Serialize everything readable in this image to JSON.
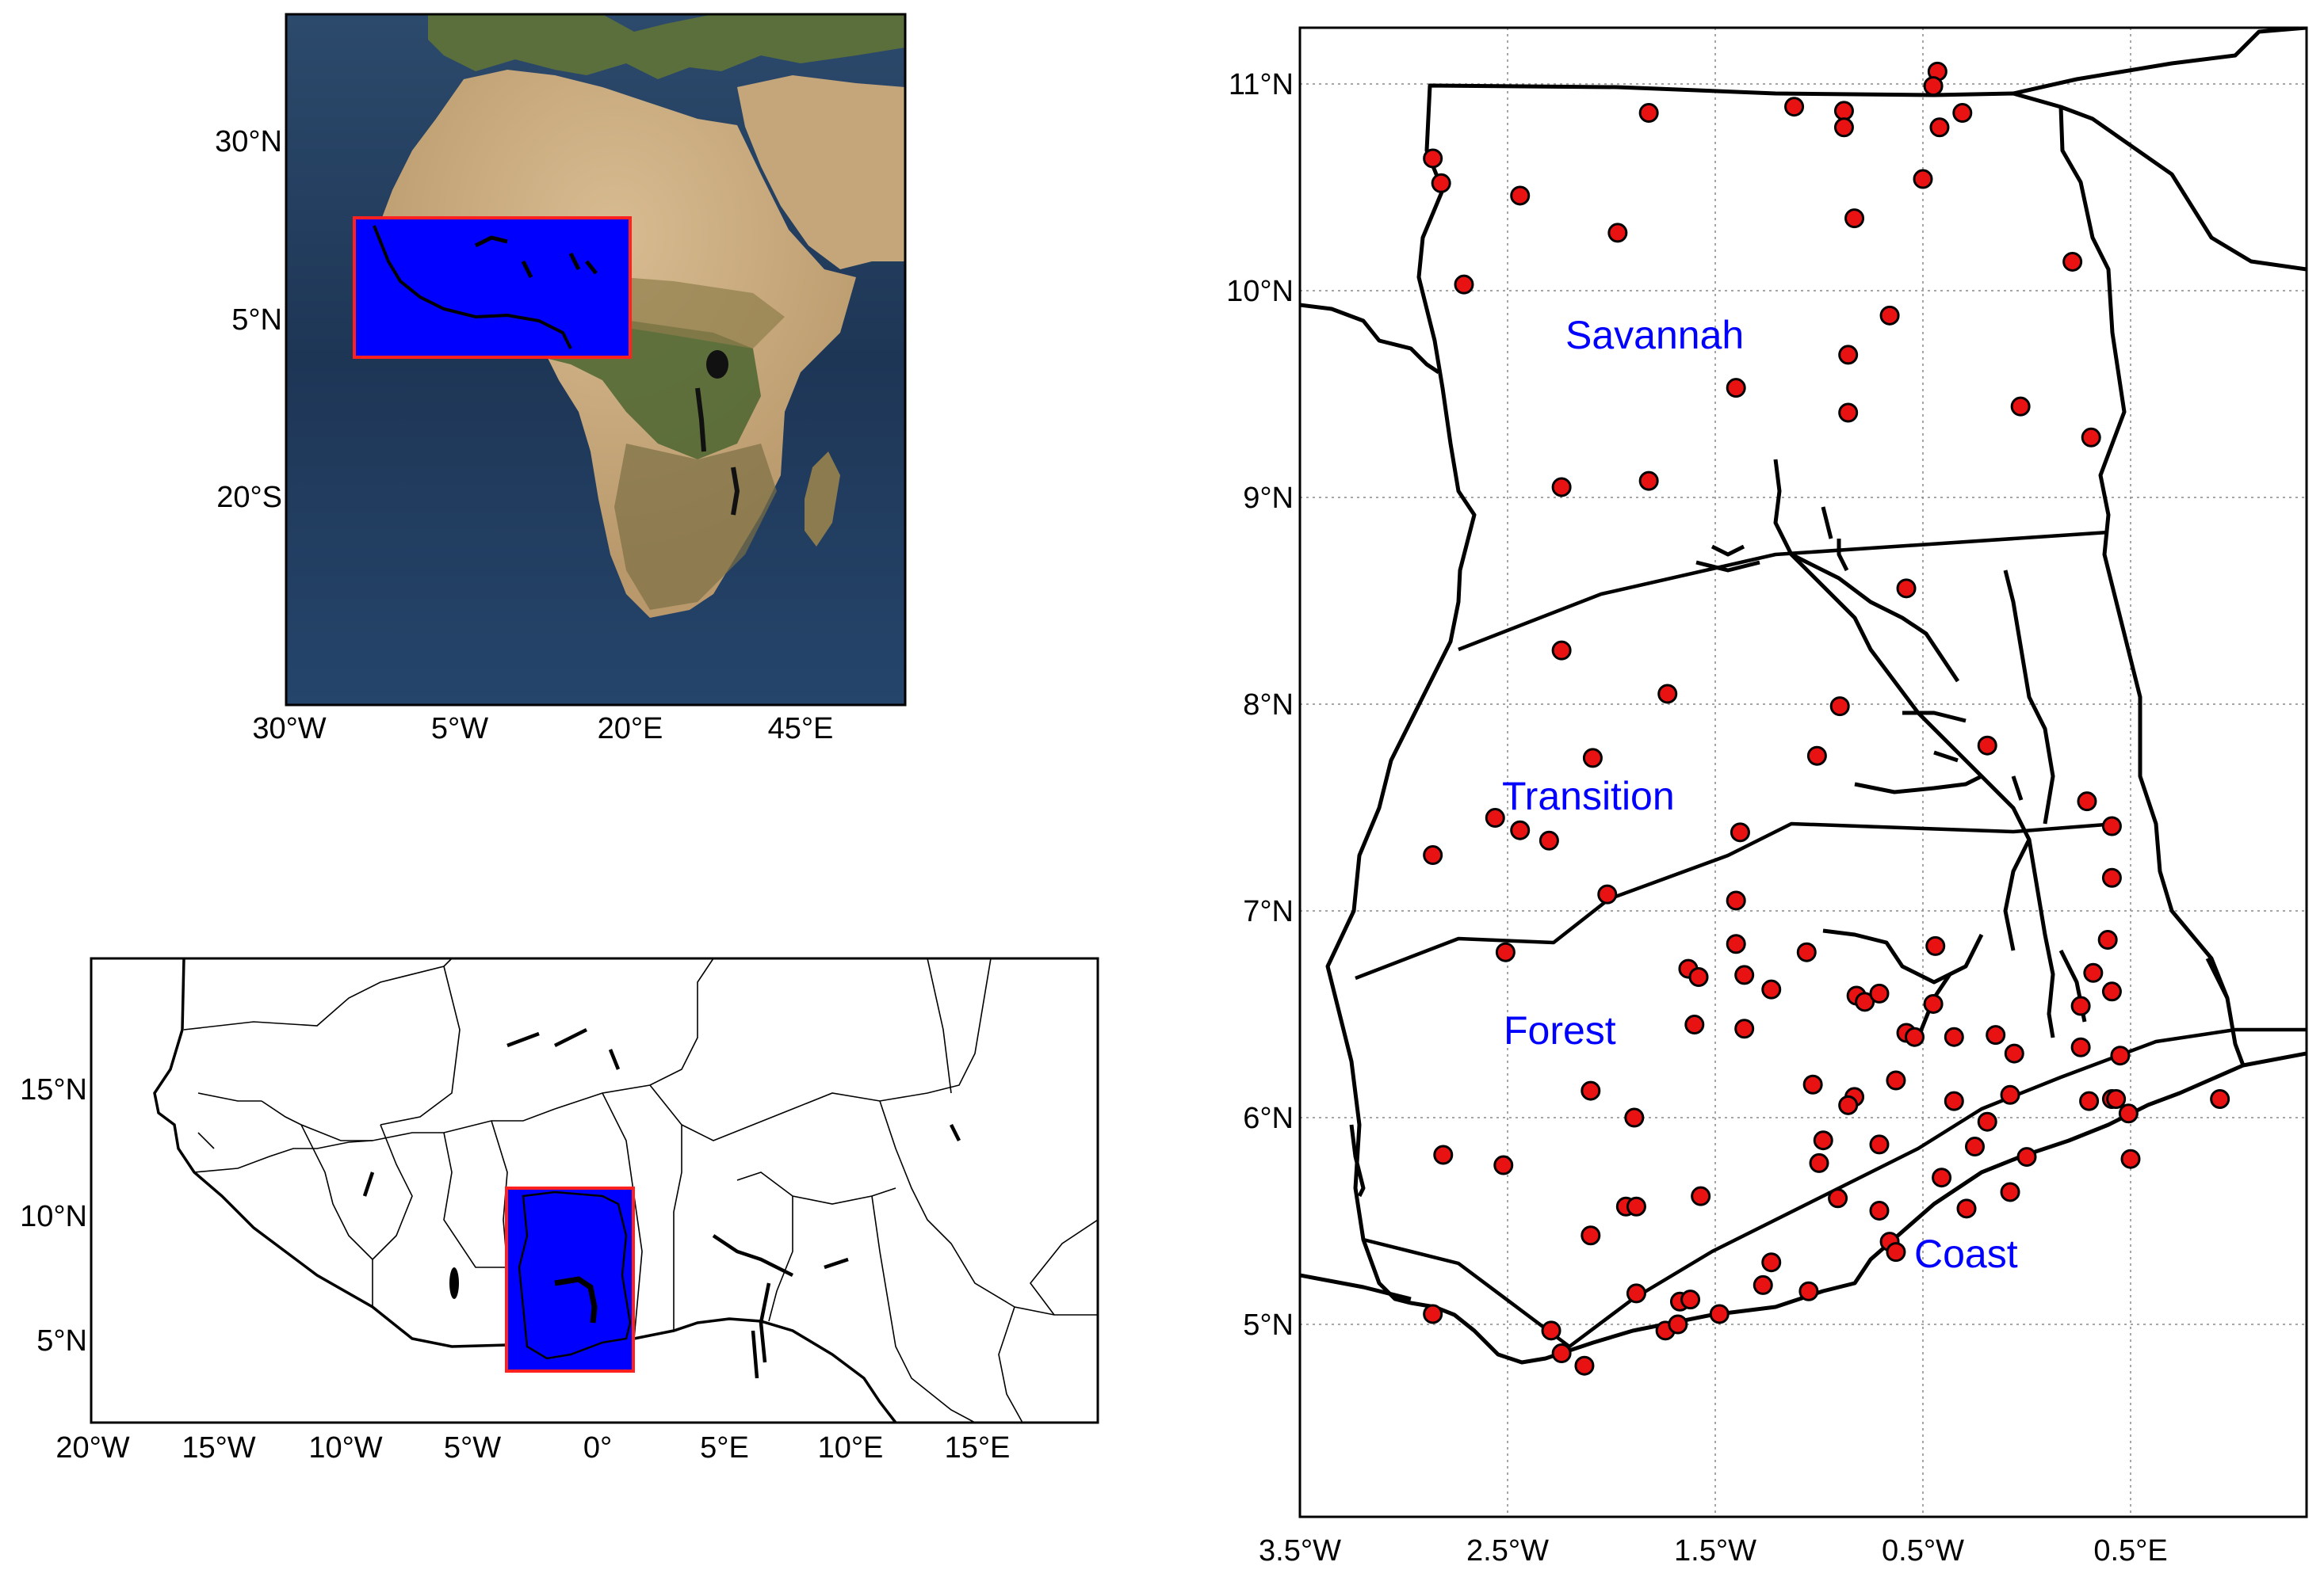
{
  "colors": {
    "ocean_dark": "#1b3050",
    "ocean_mid": "#2b4b6e",
    "desert": "#c7ab82",
    "savanna": "#93804f",
    "forest": "#3f5a2a",
    "highlight_fill": "#0000ff",
    "highlight_border": "#ff2020",
    "station": "#e81212",
    "region_label": "#0000ff"
  },
  "africa_map": {
    "x_ticks": [
      "30°W",
      "5°W",
      "20°E",
      "45°E"
    ],
    "y_ticks": [
      "30°N",
      "5°N",
      "20°S"
    ]
  },
  "west_africa_map": {
    "x_ticks": [
      "20°W",
      "15°W",
      "10°W",
      "5°W",
      "0°",
      "5°E",
      "10°E",
      "15°E"
    ],
    "y_ticks": [
      "15°N",
      "10°N",
      "5°N"
    ]
  },
  "ghana_map": {
    "x_ticks": [
      "3.5°W",
      "2.5°W",
      "1.5°W",
      "0.5°W",
      "0.5°E"
    ],
    "y_ticks": [
      "11°N",
      "10°N",
      "9°N",
      "8°N",
      "7°N",
      "6°N",
      "5°N"
    ],
    "region_labels": {
      "savannah": "Savannah",
      "transition": "Transition",
      "forest": "Forest",
      "coast": "Coast"
    },
    "stations": [
      {
        "lon": -2.86,
        "lat": 10.64
      },
      {
        "lon": -2.82,
        "lat": 10.52
      },
      {
        "lon": -2.44,
        "lat": 10.46
      },
      {
        "lon": -1.82,
        "lat": 10.86
      },
      {
        "lon": -1.12,
        "lat": 10.89
      },
      {
        "lon": -0.88,
        "lat": 10.87
      },
      {
        "lon": -0.88,
        "lat": 10.79
      },
      {
        "lon": -0.43,
        "lat": 11.06
      },
      {
        "lon": -0.45,
        "lat": 10.99
      },
      {
        "lon": -0.31,
        "lat": 10.86
      },
      {
        "lon": -0.42,
        "lat": 10.79
      },
      {
        "lon": -0.5,
        "lat": 10.54
      },
      {
        "lon": -0.83,
        "lat": 10.35
      },
      {
        "lon": -1.97,
        "lat": 10.28
      },
      {
        "lon": -2.71,
        "lat": 10.03
      },
      {
        "lon": 0.22,
        "lat": 10.14
      },
      {
        "lon": -0.66,
        "lat": 9.88
      },
      {
        "lon": -0.86,
        "lat": 9.69
      },
      {
        "lon": -1.4,
        "lat": 9.53
      },
      {
        "lon": -0.86,
        "lat": 9.41
      },
      {
        "lon": -0.03,
        "lat": 9.44
      },
      {
        "lon": 0.31,
        "lat": 9.29
      },
      {
        "lon": -2.24,
        "lat": 9.05
      },
      {
        "lon": -1.82,
        "lat": 9.08
      },
      {
        "lon": -0.58,
        "lat": 8.56
      },
      {
        "lon": -2.24,
        "lat": 8.26
      },
      {
        "lon": -1.73,
        "lat": 8.05
      },
      {
        "lon": -0.9,
        "lat": 7.99
      },
      {
        "lon": -2.09,
        "lat": 7.74
      },
      {
        "lon": -1.01,
        "lat": 7.75
      },
      {
        "lon": -0.19,
        "lat": 7.8
      },
      {
        "lon": 0.29,
        "lat": 7.53
      },
      {
        "lon": -2.56,
        "lat": 7.45
      },
      {
        "lon": -2.44,
        "lat": 7.39
      },
      {
        "lon": -2.3,
        "lat": 7.34
      },
      {
        "lon": -2.86,
        "lat": 7.27
      },
      {
        "lon": -1.38,
        "lat": 7.38
      },
      {
        "lon": 0.41,
        "lat": 7.41
      },
      {
        "lon": -2.02,
        "lat": 7.08
      },
      {
        "lon": -1.4,
        "lat": 7.05
      },
      {
        "lon": 0.41,
        "lat": 7.16
      },
      {
        "lon": -2.51,
        "lat": 6.8
      },
      {
        "lon": -1.4,
        "lat": 6.84
      },
      {
        "lon": -1.06,
        "lat": 6.8
      },
      {
        "lon": -0.44,
        "lat": 6.83
      },
      {
        "lon": 0.39,
        "lat": 6.86
      },
      {
        "lon": -1.63,
        "lat": 6.72
      },
      {
        "lon": -1.58,
        "lat": 6.68
      },
      {
        "lon": -1.36,
        "lat": 6.69
      },
      {
        "lon": -1.23,
        "lat": 6.62
      },
      {
        "lon": 0.32,
        "lat": 6.7
      },
      {
        "lon": -0.82,
        "lat": 6.59
      },
      {
        "lon": -0.78,
        "lat": 6.56
      },
      {
        "lon": -0.71,
        "lat": 6.6
      },
      {
        "lon": -0.45,
        "lat": 6.55
      },
      {
        "lon": 0.41,
        "lat": 6.61
      },
      {
        "lon": 0.26,
        "lat": 6.54
      },
      {
        "lon": -1.6,
        "lat": 6.45
      },
      {
        "lon": -1.36,
        "lat": 6.43
      },
      {
        "lon": -0.58,
        "lat": 6.41
      },
      {
        "lon": -0.54,
        "lat": 6.39
      },
      {
        "lon": -0.35,
        "lat": 6.39
      },
      {
        "lon": -0.15,
        "lat": 6.4
      },
      {
        "lon": 0.26,
        "lat": 6.34
      },
      {
        "lon": -0.06,
        "lat": 6.31
      },
      {
        "lon": 0.45,
        "lat": 6.3
      },
      {
        "lon": -1.03,
        "lat": 6.16
      },
      {
        "lon": -0.63,
        "lat": 6.18
      },
      {
        "lon": -0.83,
        "lat": 6.1
      },
      {
        "lon": -0.86,
        "lat": 6.06
      },
      {
        "lon": -0.35,
        "lat": 6.08
      },
      {
        "lon": -0.08,
        "lat": 6.11
      },
      {
        "lon": 0.41,
        "lat": 6.09
      },
      {
        "lon": 0.43,
        "lat": 6.09
      },
      {
        "lon": 0.49,
        "lat": 6.02
      },
      {
        "lon": 0.3,
        "lat": 6.08
      },
      {
        "lon": -2.1,
        "lat": 6.13
      },
      {
        "lon": -1.89,
        "lat": 6.0
      },
      {
        "lon": -0.19,
        "lat": 5.98
      },
      {
        "lon": -0.98,
        "lat": 5.89
      },
      {
        "lon": -0.71,
        "lat": 5.87
      },
      {
        "lon": -0.25,
        "lat": 5.86
      },
      {
        "lon": -2.81,
        "lat": 5.82
      },
      {
        "lon": -2.52,
        "lat": 5.77
      },
      {
        "lon": -1.0,
        "lat": 5.78
      },
      {
        "lon": 0.0,
        "lat": 5.81
      },
      {
        "lon": -0.41,
        "lat": 5.71
      },
      {
        "lon": -1.93,
        "lat": 5.57
      },
      {
        "lon": -1.88,
        "lat": 5.57
      },
      {
        "lon": -1.57,
        "lat": 5.62
      },
      {
        "lon": -0.91,
        "lat": 5.61
      },
      {
        "lon": -0.71,
        "lat": 5.55
      },
      {
        "lon": -0.29,
        "lat": 5.56
      },
      {
        "lon": -0.08,
        "lat": 5.64
      },
      {
        "lon": 0.5,
        "lat": 5.8
      },
      {
        "lon": -2.1,
        "lat": 5.43
      },
      {
        "lon": -0.66,
        "lat": 5.4
      },
      {
        "lon": -0.63,
        "lat": 5.35
      },
      {
        "lon": -1.23,
        "lat": 5.3
      },
      {
        "lon": -1.27,
        "lat": 5.19
      },
      {
        "lon": -1.05,
        "lat": 5.16
      },
      {
        "lon": -1.88,
        "lat": 5.15
      },
      {
        "lon": -1.67,
        "lat": 5.11
      },
      {
        "lon": -1.62,
        "lat": 5.12
      },
      {
        "lon": -1.48,
        "lat": 5.05
      },
      {
        "lon": -2.86,
        "lat": 5.05
      },
      {
        "lon": -2.29,
        "lat": 4.97
      },
      {
        "lon": -1.74,
        "lat": 4.97
      },
      {
        "lon": -1.68,
        "lat": 5.0
      },
      {
        "lon": -2.24,
        "lat": 4.86
      },
      {
        "lon": -2.13,
        "lat": 4.8
      },
      {
        "lon": 0.93,
        "lat": 6.09
      }
    ]
  }
}
